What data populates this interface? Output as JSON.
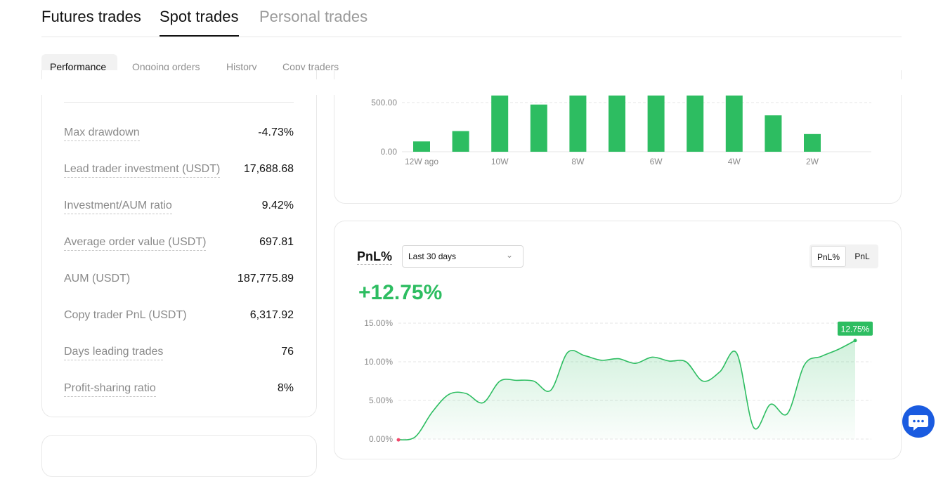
{
  "top_tabs": [
    "Futures trades",
    "Spot trades",
    "Personal trades"
  ],
  "sub_tabs": [
    "Performance",
    "Ongoing orders",
    "History",
    "Copy traders"
  ],
  "stats": [
    {
      "label": "Max drawdown",
      "value": "-4.73%"
    },
    {
      "label": "Lead trader investment (USDT)",
      "value": "17,688.68"
    },
    {
      "label": "Investment/AUM ratio",
      "value": "9.42%"
    },
    {
      "label": "Average order value (USDT)",
      "value": "697.81"
    },
    {
      "label": "AUM (USDT)",
      "value": "187,775.89"
    },
    {
      "label": "Copy trader PnL (USDT)",
      "value": "6,317.92"
    },
    {
      "label": "Days leading trades",
      "value": "76"
    },
    {
      "label": "Profit-sharing ratio",
      "value": "8%"
    }
  ],
  "pnl": {
    "title": "PnL%",
    "range": "Last 30 days",
    "toggle": [
      "PnL%",
      "PnL"
    ],
    "value": "+12.75%",
    "tooltip": "12.75%"
  },
  "colors": {
    "green": "#2dbd61",
    "chat": "#1a5be0",
    "start_dot": "#f0476a"
  },
  "icons": {
    "dropdown": "chevron-down-icon",
    "chat": "chat-icon"
  },
  "chart_data": [
    {
      "type": "bar",
      "x_ticks": [
        "12W ago",
        "10W",
        "8W",
        "6W",
        "4W",
        "2W"
      ],
      "y_ticks": [
        "0.00",
        "500.00"
      ],
      "values": [
        105,
        210,
        580,
        480,
        580,
        580,
        580,
        580,
        580,
        370,
        180
      ],
      "ylim": [
        0,
        600
      ],
      "grid": true
    },
    {
      "type": "area",
      "y_ticks": [
        "0.00%",
        "5.00%",
        "10.00%",
        "15.00%"
      ],
      "ylim": [
        0,
        15
      ],
      "values": [
        -0.1,
        0.3,
        3.5,
        5.8,
        5.9,
        4.7,
        7.5,
        7.6,
        7.5,
        6.3,
        11.2,
        10.8,
        10.2,
        10.4,
        9.8,
        10.6,
        10.1,
        10.0,
        7.5,
        8.7,
        11.1,
        1.5,
        4.5,
        3.3,
        9.6,
        10.7,
        11.6,
        12.75
      ],
      "grid": true
    }
  ]
}
